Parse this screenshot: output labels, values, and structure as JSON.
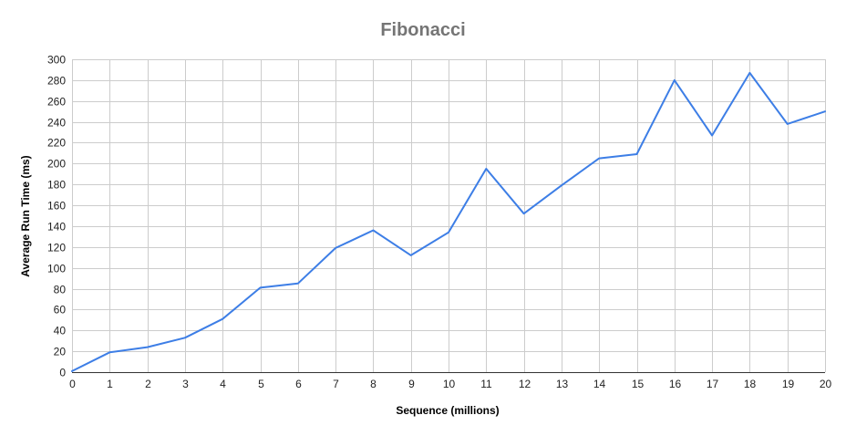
{
  "chart_data": {
    "type": "line",
    "title": "Fibonacci",
    "xlabel": "Sequence (millions)",
    "ylabel": "Average Run Time (ms)",
    "x": [
      0,
      1,
      2,
      3,
      4,
      5,
      6,
      7,
      8,
      9,
      10,
      11,
      12,
      13,
      14,
      15,
      16,
      17,
      18,
      19,
      20
    ],
    "series": [
      {
        "values": [
          1,
          19,
          24,
          33,
          51,
          81,
          85,
          119,
          136,
          112,
          134,
          195,
          152,
          179,
          205,
          209,
          280,
          227,
          287,
          238,
          250
        ],
        "color": "#3d7ee6"
      }
    ],
    "xlim": [
      0,
      20
    ],
    "ylim": [
      0,
      300
    ],
    "xticks": [
      0,
      1,
      2,
      3,
      4,
      5,
      6,
      7,
      8,
      9,
      10,
      11,
      12,
      13,
      14,
      15,
      16,
      17,
      18,
      19,
      20
    ],
    "yticks": [
      0,
      20,
      40,
      60,
      80,
      100,
      120,
      140,
      160,
      180,
      200,
      220,
      240,
      260,
      280,
      300
    ],
    "grid": true,
    "legend": "none"
  }
}
